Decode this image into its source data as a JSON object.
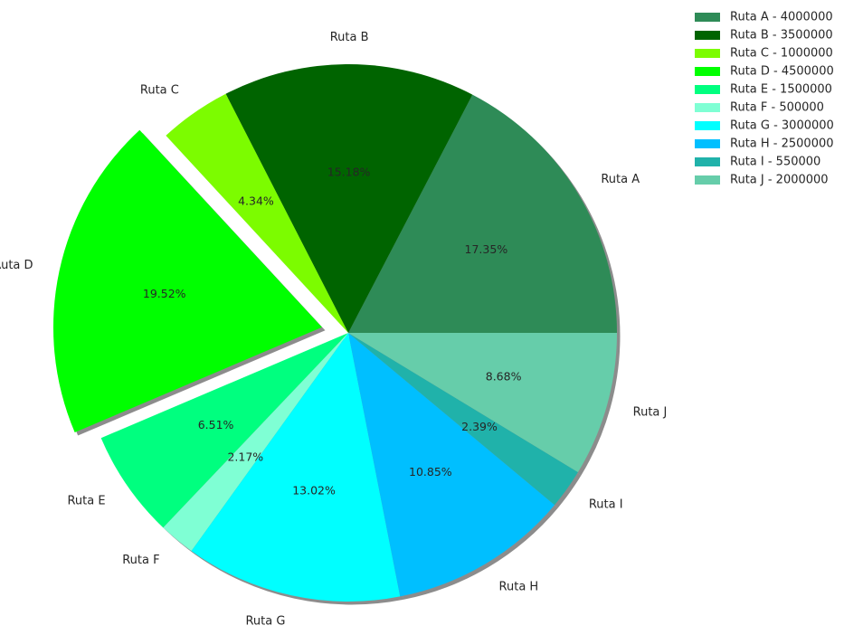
{
  "chart_data": {
    "type": "pie",
    "title": "",
    "start_angle_deg": 0,
    "direction": "counterclockwise",
    "shadow": true,
    "legend_position": "upper-right-outside",
    "slices": [
      {
        "label": "Ruta A",
        "value": 4000000,
        "percent_label": "17.35%",
        "legend": "Ruta A - 4000000",
        "color": "#2e8b57",
        "explode": 0
      },
      {
        "label": "Ruta B",
        "value": 3500000,
        "percent_label": "15.18%",
        "legend": "Ruta B - 3500000",
        "color": "#006400",
        "explode": 0
      },
      {
        "label": "Ruta C",
        "value": 1000000,
        "percent_label": "4.34%",
        "legend": "Ruta C - 1000000",
        "color": "#7cfc00",
        "explode": 0
      },
      {
        "label": "Ruta D",
        "value": 4500000,
        "percent_label": "19.52%",
        "legend": "Ruta D - 4500000",
        "color": "#00ff00",
        "explode": 0.1
      },
      {
        "label": "Ruta E",
        "value": 1500000,
        "percent_label": "6.51%",
        "legend": "Ruta E - 1500000",
        "color": "#00ff7f",
        "explode": 0
      },
      {
        "label": "Ruta F",
        "value": 500000,
        "percent_label": "2.17%",
        "legend": "Ruta F - 500000",
        "color": "#7fffd4",
        "explode": 0
      },
      {
        "label": "Ruta G",
        "value": 3000000,
        "percent_label": "13.02%",
        "legend": "Ruta G - 3000000",
        "color": "#00ffff",
        "explode": 0
      },
      {
        "label": "Ruta H",
        "value": 2500000,
        "percent_label": "10.85%",
        "legend": "Ruta H - 2500000",
        "color": "#00bfff",
        "explode": 0
      },
      {
        "label": "Ruta I",
        "value": 550000,
        "percent_label": "2.39%",
        "legend": "Ruta I - 550000",
        "color": "#20b2aa",
        "explode": 0
      },
      {
        "label": "Ruta J",
        "value": 2000000,
        "percent_label": "8.68%",
        "legend": " Ruta J - 2000000",
        "color": "#66cdaa",
        "explode": 0
      }
    ]
  }
}
